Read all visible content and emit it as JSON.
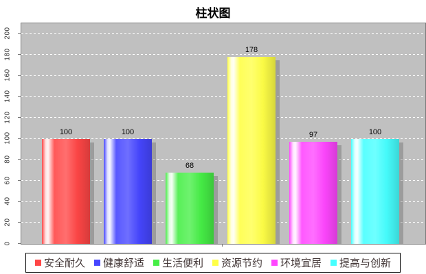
{
  "chart_data": {
    "type": "bar",
    "title": "柱状图",
    "categories": [
      ""
    ],
    "series": [
      {
        "name": "安全耐久",
        "value": 100,
        "color": "#ff4646"
      },
      {
        "name": "健康舒适",
        "value": 100,
        "color": "#4646ff"
      },
      {
        "name": "生活便利",
        "value": 68,
        "color": "#46ee46"
      },
      {
        "name": "资源节约",
        "value": 178,
        "color": "#ffff46"
      },
      {
        "name": "环境宜居",
        "value": 97,
        "color": "#ff46ff"
      },
      {
        "name": "提高与创新",
        "value": 100,
        "color": "#46ffff"
      }
    ],
    "xlabel": "",
    "ylabel": "",
    "ylim": [
      0,
      210
    ],
    "yticks": [
      0,
      20,
      40,
      60,
      80,
      100,
      120,
      140,
      160,
      180,
      200
    ],
    "grid": "dashed-white-horizontal",
    "plot_background": "#c0c0c0",
    "outer_background": "#ffffff",
    "legend_position": "bottom",
    "bar_style": "cylinder-gradient-with-shadow"
  }
}
